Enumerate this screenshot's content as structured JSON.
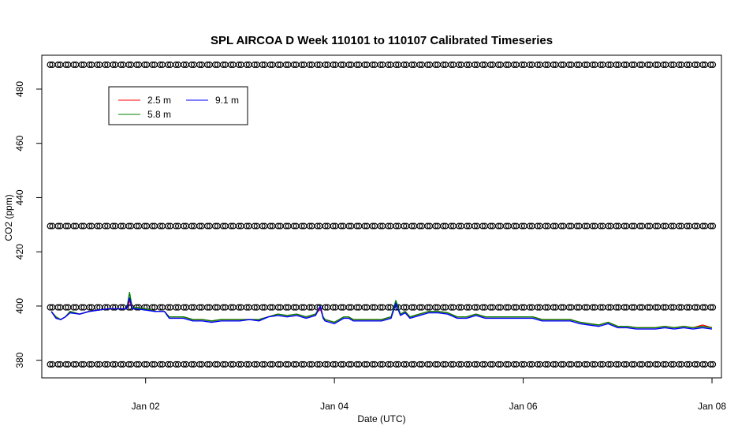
{
  "chart_data": {
    "type": "line",
    "title": "SPL AIRCOA D  Week 110101 to 110107  Calibrated Timeseries",
    "xlabel": "Date (UTC)",
    "ylabel": "CO2 (ppm)",
    "x_range_days": [
      1.0,
      8.0
    ],
    "xlim": [
      0.9,
      8.1
    ],
    "ylim": [
      373.5,
      492.5
    ],
    "x_ticks": [
      {
        "value": 2,
        "label": "Jan 02"
      },
      {
        "value": 4,
        "label": "Jan 04"
      },
      {
        "value": 6,
        "label": "Jan 06"
      },
      {
        "value": 8,
        "label": "Jan 08"
      }
    ],
    "y_ticks": [
      380,
      400,
      420,
      440,
      460,
      480
    ],
    "legend": {
      "placement": "top-left",
      "entries": [
        {
          "name": "2.5 m",
          "color": "#ff0000"
        },
        {
          "name": "5.8 m",
          "color": "#008000"
        },
        {
          "name": "9.1 m",
          "color": "#0000ff"
        }
      ]
    },
    "calibration_points": {
      "marker": "open-circle",
      "levels_ppm": [
        489,
        429.5,
        399.5,
        378.5
      ],
      "interval_days": 0.0833
    },
    "series": [
      {
        "name": "2.5 m",
        "color": "#ff0000",
        "x": [
          1.0,
          1.05,
          1.1,
          1.15,
          1.2,
          1.3,
          1.4,
          1.5,
          1.6,
          1.7,
          1.8,
          1.83,
          1.86,
          1.9,
          2.0,
          2.1,
          2.2,
          2.25,
          2.3,
          2.4,
          2.5,
          2.6,
          2.7,
          2.8,
          2.9,
          3.0,
          3.1,
          3.2,
          3.3,
          3.4,
          3.5,
          3.6,
          3.7,
          3.8,
          3.85,
          3.88,
          3.9,
          4.0,
          4.05,
          4.1,
          4.15,
          4.2,
          4.3,
          4.4,
          4.5,
          4.6,
          4.65,
          4.7,
          4.75,
          4.8,
          4.9,
          5.0,
          5.1,
          5.2,
          5.3,
          5.4,
          5.5,
          5.6,
          5.7,
          5.8,
          5.9,
          6.0,
          6.1,
          6.2,
          6.3,
          6.4,
          6.5,
          6.6,
          6.7,
          6.8,
          6.9,
          7.0,
          7.1,
          7.2,
          7.3,
          7.4,
          7.5,
          7.6,
          7.7,
          7.8,
          7.9,
          8.0
        ],
        "values": [
          398,
          396,
          395,
          396,
          398,
          397,
          398,
          398.5,
          399,
          399,
          399,
          402,
          399,
          399.5,
          399,
          398,
          398,
          396,
          396,
          396,
          395,
          395,
          394.5,
          395,
          395,
          395,
          395,
          395,
          396,
          397,
          396.5,
          397,
          396,
          397,
          399,
          396,
          395,
          394,
          395,
          396,
          396,
          395,
          395,
          395,
          395,
          396,
          401,
          397,
          398,
          396,
          397,
          398,
          398,
          397.5,
          396,
          396,
          397,
          396,
          396,
          396,
          396,
          396,
          396,
          395,
          395,
          395,
          395,
          394,
          393.5,
          393,
          394,
          392.5,
          392.5,
          392,
          392,
          392,
          392.5,
          392,
          392.5,
          392,
          393,
          392
        ]
      },
      {
        "name": "5.8 m",
        "color": "#008000",
        "x": [
          1.0,
          1.05,
          1.1,
          1.15,
          1.2,
          1.3,
          1.4,
          1.5,
          1.6,
          1.7,
          1.8,
          1.83,
          1.86,
          1.9,
          2.0,
          2.1,
          2.2,
          2.25,
          2.3,
          2.4,
          2.5,
          2.6,
          2.7,
          2.8,
          2.9,
          3.0,
          3.1,
          3.2,
          3.3,
          3.4,
          3.5,
          3.6,
          3.7,
          3.8,
          3.85,
          3.88,
          3.9,
          4.0,
          4.05,
          4.1,
          4.15,
          4.2,
          4.3,
          4.4,
          4.5,
          4.6,
          4.65,
          4.7,
          4.75,
          4.8,
          4.9,
          5.0,
          5.1,
          5.2,
          5.3,
          5.4,
          5.5,
          5.6,
          5.7,
          5.8,
          5.9,
          6.0,
          6.1,
          6.2,
          6.3,
          6.4,
          6.5,
          6.6,
          6.7,
          6.8,
          6.9,
          7.0,
          7.1,
          7.2,
          7.3,
          7.4,
          7.5,
          7.6,
          7.7,
          7.8,
          7.9,
          8.0
        ],
        "values": [
          398,
          396,
          395,
          396,
          398,
          397,
          398,
          398.5,
          399,
          399,
          399,
          405,
          399,
          399.5,
          399,
          398,
          398,
          396,
          396,
          396,
          395,
          395,
          394.5,
          395,
          395,
          395,
          395,
          395,
          396,
          397,
          396.5,
          397,
          396,
          397,
          400,
          396,
          395,
          394,
          395,
          396,
          396,
          395,
          395,
          395,
          395,
          396,
          402,
          397,
          398,
          396,
          397,
          398,
          398,
          397.5,
          396,
          396,
          397,
          396,
          396,
          396,
          396,
          396,
          396,
          395,
          395,
          395,
          395,
          394,
          393.5,
          393,
          394,
          392.5,
          392.5,
          392,
          392,
          392,
          392.5,
          392,
          392.5,
          392,
          392.5,
          392
        ]
      },
      {
        "name": "9.1 m",
        "color": "#0000ff",
        "x": [
          1.0,
          1.05,
          1.1,
          1.15,
          1.2,
          1.3,
          1.4,
          1.5,
          1.6,
          1.7,
          1.8,
          1.83,
          1.86,
          1.9,
          2.0,
          2.1,
          2.2,
          2.25,
          2.3,
          2.4,
          2.5,
          2.6,
          2.7,
          2.8,
          2.9,
          3.0,
          3.1,
          3.2,
          3.3,
          3.4,
          3.5,
          3.6,
          3.7,
          3.8,
          3.85,
          3.88,
          3.9,
          4.0,
          4.05,
          4.1,
          4.15,
          4.2,
          4.3,
          4.4,
          4.5,
          4.6,
          4.65,
          4.7,
          4.75,
          4.8,
          4.9,
          5.0,
          5.1,
          5.2,
          5.3,
          5.4,
          5.5,
          5.6,
          5.7,
          5.8,
          5.9,
          6.0,
          6.1,
          6.2,
          6.3,
          6.4,
          6.5,
          6.6,
          6.7,
          6.8,
          6.9,
          7.0,
          7.1,
          7.2,
          7.3,
          7.4,
          7.5,
          7.6,
          7.7,
          7.8,
          7.9,
          8.0
        ],
        "values": [
          398,
          395.5,
          395,
          396,
          397.5,
          397,
          398,
          398.5,
          399,
          399,
          399,
          403,
          399,
          399,
          398.5,
          398,
          398,
          395.5,
          395.5,
          395.5,
          394.5,
          394.5,
          394,
          394.5,
          394.5,
          394.5,
          395,
          394.5,
          396,
          396.5,
          396,
          396.5,
          395.5,
          396.5,
          400,
          395.5,
          394.5,
          393.5,
          394.5,
          395.5,
          395.5,
          394.5,
          394.5,
          394.5,
          394.5,
          395.5,
          401,
          396.5,
          397.5,
          395.5,
          396.5,
          397.5,
          397.5,
          397,
          395.5,
          395.5,
          396.5,
          395.5,
          395.5,
          395.5,
          395.5,
          395.5,
          395.5,
          394.5,
          394.5,
          394.5,
          394.5,
          393.5,
          393,
          392.5,
          393.5,
          392,
          392,
          391.5,
          391.5,
          391.5,
          392,
          391.5,
          392,
          391.5,
          392,
          391.5
        ]
      }
    ]
  }
}
